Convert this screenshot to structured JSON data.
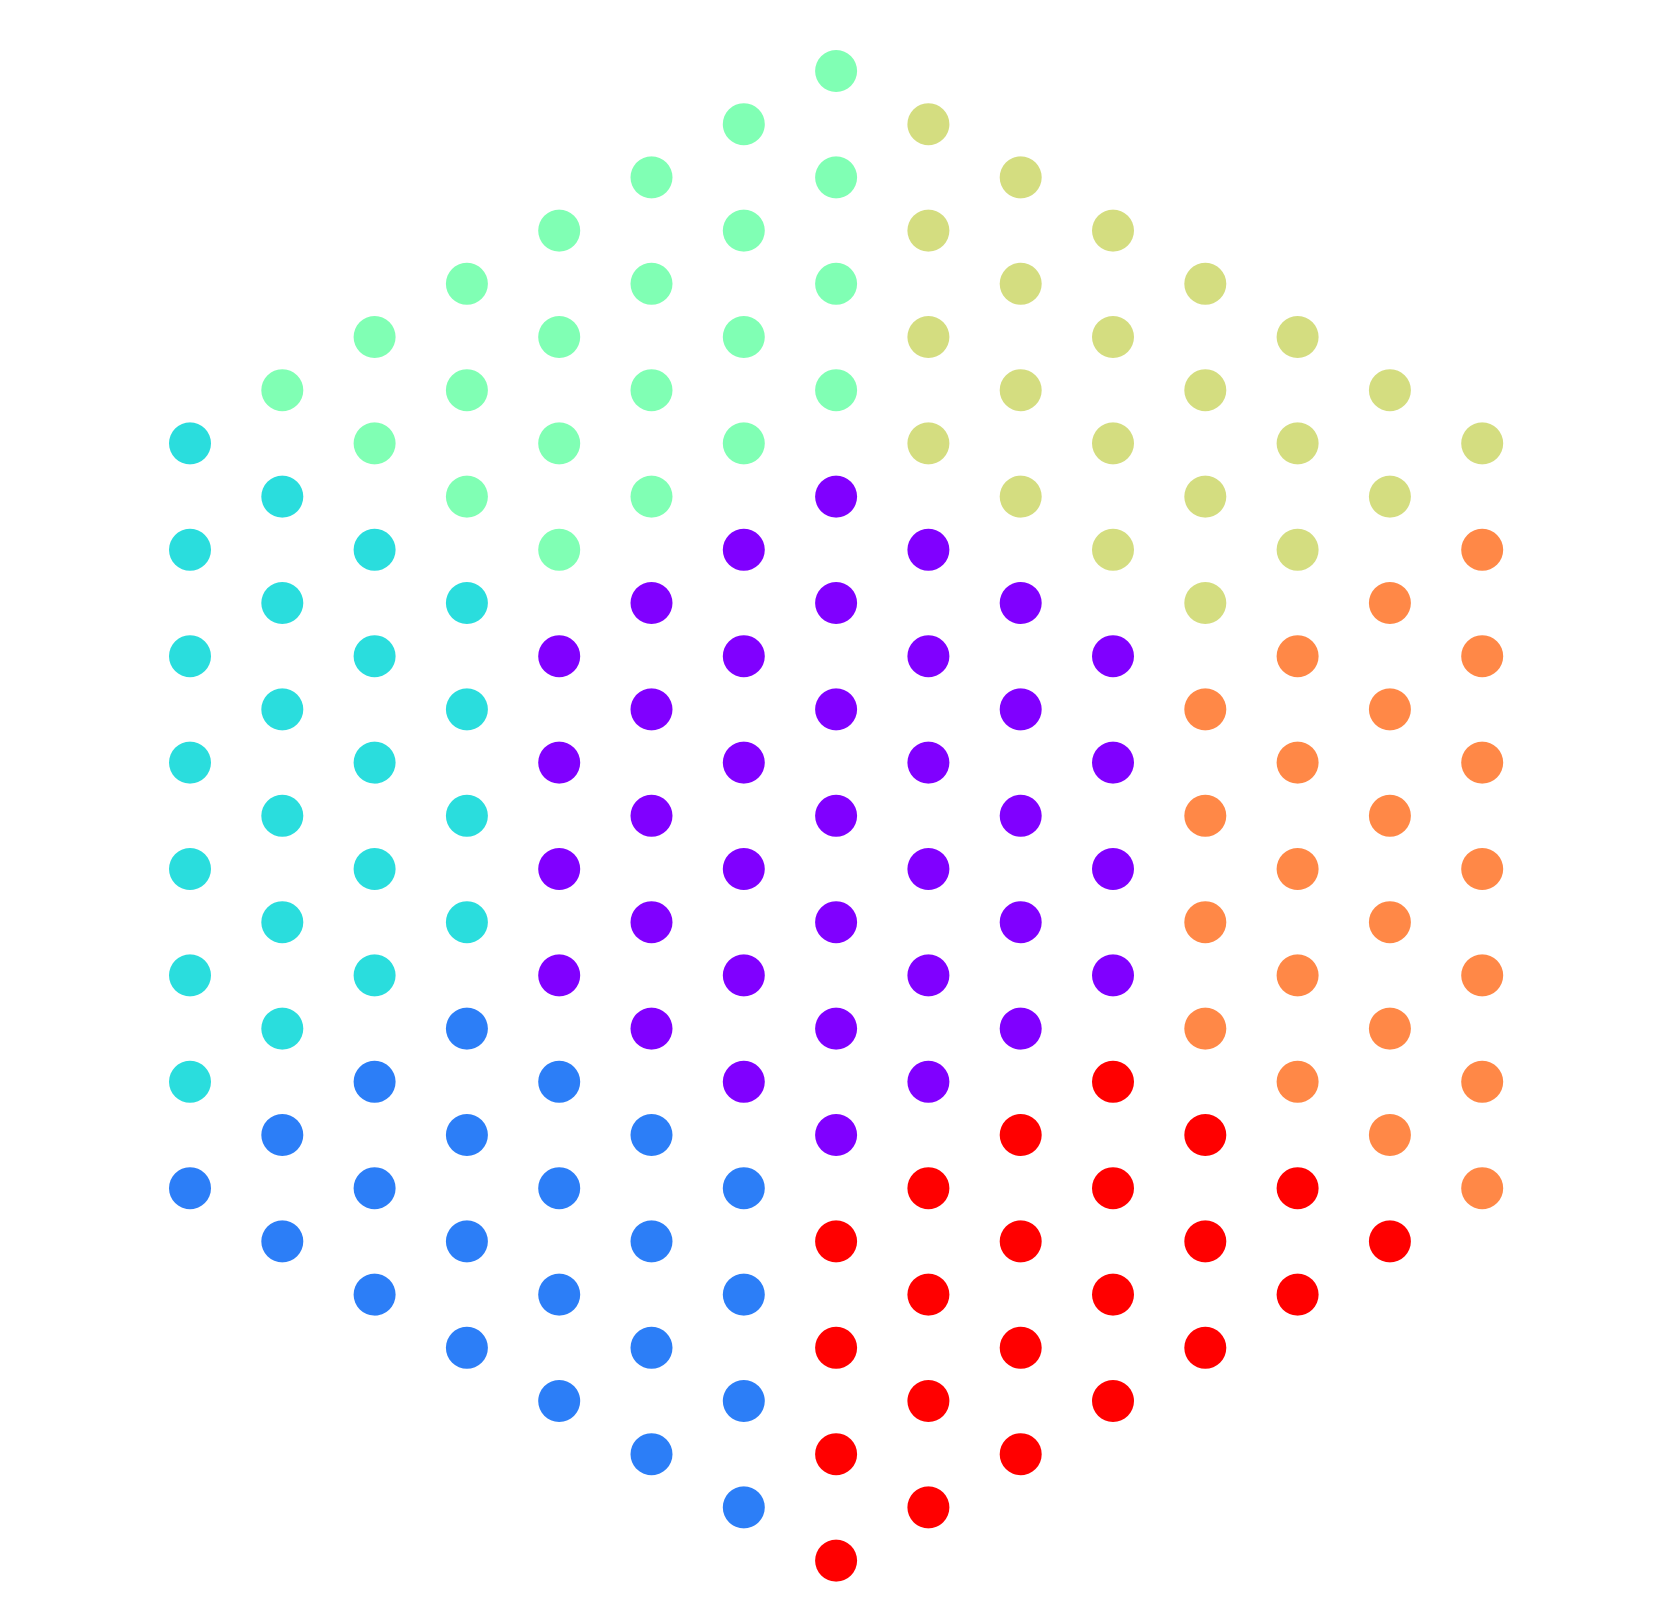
{
  "diagram": {
    "type": "hexagonal-dot-lattice",
    "background": "#ffffff",
    "grid": {
      "columns": 15,
      "rows_per_column": 22
    },
    "colors": {
      "green": "#80ffb4",
      "olive": "#d4dd80",
      "cyan": "#2adddd",
      "purple": "#8000ff",
      "orange": "#ff8847",
      "blue": "#2c7ef7",
      "red": "#ff0000"
    },
    "regions": [
      {
        "name": "top-left-face",
        "color": "green",
        "columns": [
          {
            "col": 1,
            "rows": [
              6
            ]
          },
          {
            "col": 2,
            "rows": [
              5,
              7
            ]
          },
          {
            "col": 3,
            "rows": [
              4,
              6,
              8
            ]
          },
          {
            "col": 4,
            "rows": [
              3,
              5,
              7,
              9
            ]
          },
          {
            "col": 5,
            "rows": [
              2,
              4,
              6,
              8
            ]
          },
          {
            "col": 6,
            "rows": [
              1,
              3,
              5,
              7
            ]
          },
          {
            "col": 7,
            "rows": [
              0,
              2,
              4,
              6
            ]
          }
        ]
      },
      {
        "name": "top-right-face",
        "color": "olive",
        "columns": [
          {
            "col": 8,
            "rows": [
              1,
              3,
              5,
              7
            ]
          },
          {
            "col": 9,
            "rows": [
              2,
              4,
              6,
              8
            ]
          },
          {
            "col": 10,
            "rows": [
              3,
              5,
              7,
              9
            ]
          },
          {
            "col": 11,
            "rows": [
              4,
              6,
              8,
              10
            ]
          },
          {
            "col": 12,
            "rows": [
              5,
              7,
              9
            ]
          },
          {
            "col": 13,
            "rows": [
              6,
              8
            ]
          },
          {
            "col": 14,
            "rows": [
              7
            ]
          }
        ]
      },
      {
        "name": "left-face",
        "color": "cyan",
        "columns": [
          {
            "col": 0,
            "rows": [
              7,
              9,
              11,
              13,
              15,
              17,
              19
            ]
          },
          {
            "col": 1,
            "rows": [
              8,
              10,
              12,
              14,
              16,
              18
            ]
          },
          {
            "col": 2,
            "rows": [
              9,
              11,
              13,
              15,
              17
            ]
          },
          {
            "col": 3,
            "rows": [
              10,
              12,
              14,
              16
            ]
          }
        ]
      },
      {
        "name": "center-face",
        "color": "purple",
        "columns": [
          {
            "col": 4,
            "rows": [
              11,
              13,
              15,
              17
            ]
          },
          {
            "col": 5,
            "rows": [
              10,
              12,
              14,
              16,
              18
            ]
          },
          {
            "col": 6,
            "rows": [
              9,
              11,
              13,
              15,
              17,
              19
            ]
          },
          {
            "col": 7,
            "rows": [
              8,
              10,
              12,
              14,
              16,
              18,
              20
            ]
          },
          {
            "col": 8,
            "rows": [
              9,
              11,
              13,
              15,
              17,
              19
            ]
          },
          {
            "col": 9,
            "rows": [
              10,
              12,
              14,
              16,
              18
            ]
          },
          {
            "col": 10,
            "rows": [
              11,
              13,
              15,
              17
            ]
          }
        ]
      },
      {
        "name": "right-face",
        "color": "orange",
        "columns": [
          {
            "col": 11,
            "rows": [
              12,
              14,
              16,
              18
            ]
          },
          {
            "col": 12,
            "rows": [
              11,
              13,
              15,
              17,
              19
            ]
          },
          {
            "col": 13,
            "rows": [
              10,
              12,
              14,
              16,
              18,
              20
            ]
          },
          {
            "col": 14,
            "rows": [
              9,
              11,
              13,
              15,
              17,
              19,
              21
            ]
          }
        ]
      },
      {
        "name": "bottom-left-face",
        "color": "blue",
        "columns": [
          {
            "col": 0,
            "rows": [
              21
            ]
          },
          {
            "col": 1,
            "rows": [
              20,
              22
            ]
          },
          {
            "col": 2,
            "rows": [
              19,
              21,
              23
            ]
          },
          {
            "col": 3,
            "rows": [
              18,
              20,
              22,
              24
            ]
          },
          {
            "col": 4,
            "rows": [
              19,
              21,
              23,
              25
            ]
          },
          {
            "col": 5,
            "rows": [
              20,
              22,
              24,
              26
            ]
          },
          {
            "col": 6,
            "rows": [
              21,
              23,
              25,
              27
            ]
          }
        ]
      },
      {
        "name": "bottom-right-face",
        "color": "red",
        "columns": [
          {
            "col": 7,
            "rows": [
              22,
              24,
              26,
              28
            ]
          },
          {
            "col": 8,
            "rows": [
              21,
              23,
              25,
              27
            ]
          },
          {
            "col": 9,
            "rows": [
              20,
              22,
              24,
              26
            ]
          },
          {
            "col": 10,
            "rows": [
              19,
              21,
              23,
              25
            ]
          },
          {
            "col": 11,
            "rows": [
              20,
              22,
              24
            ]
          },
          {
            "col": 12,
            "rows": [
              21,
              23
            ]
          },
          {
            "col": 13,
            "rows": [
              22
            ]
          }
        ]
      }
    ]
  }
}
